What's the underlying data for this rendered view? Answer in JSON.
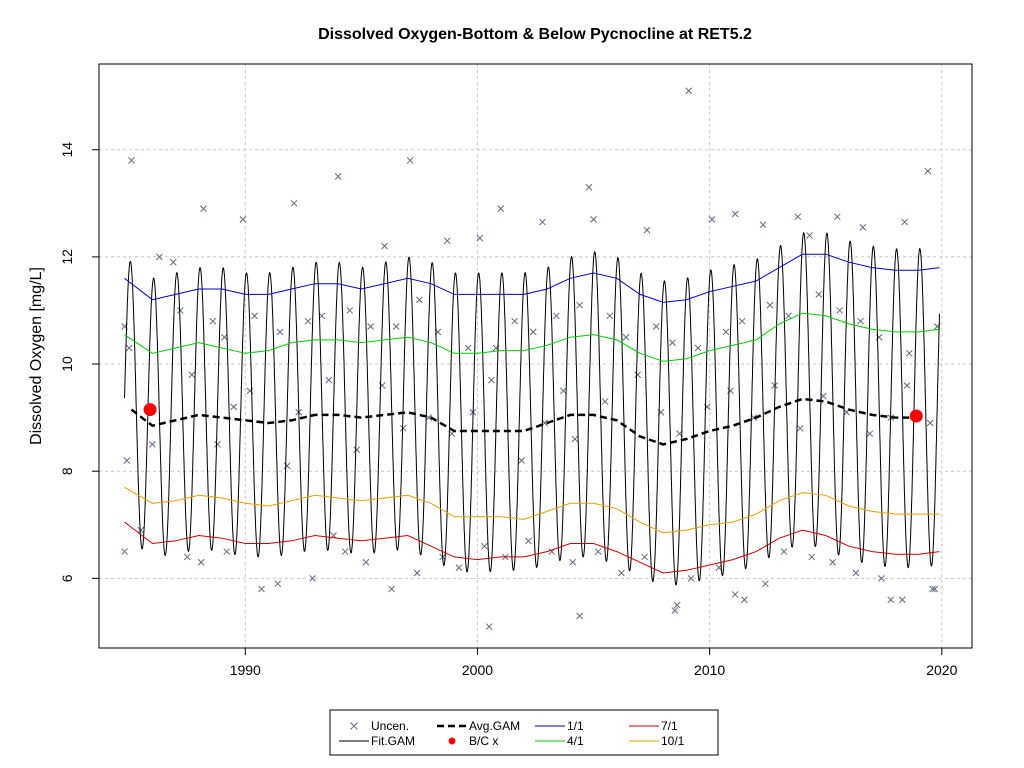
{
  "chart_data": {
    "type": "scatter",
    "title": "Dissolved Oxygen-Bottom & Below Pycnocline at RET5.2",
    "xlabel": "",
    "ylabel": "Dissolved Oxygen [mg/L]",
    "xlim": [
      1983.7,
      2021.3
    ],
    "ylim": [
      4.7,
      15.6
    ],
    "x_ticks": [
      1990,
      2000,
      2010,
      2020
    ],
    "y_ticks": [
      6,
      8,
      10,
      12,
      14
    ],
    "x_tick_labels": [
      "1990",
      "2000",
      "2010",
      "2020"
    ],
    "y_tick_labels": [
      "6",
      "8",
      "10",
      "12",
      "14"
    ],
    "grid": true,
    "legend_position": "bottom",
    "legend": [
      {
        "label": "Uncen.",
        "kind": "cross",
        "color": "#5a6a80"
      },
      {
        "label": "Fit.GAM",
        "kind": "line",
        "color": "#000000"
      },
      {
        "label": "Avg.GAM",
        "kind": "dashed",
        "color": "#000000"
      },
      {
        "label": "B/C x",
        "kind": "dot",
        "color": "#ff0000"
      },
      {
        "label": "1/1",
        "kind": "line",
        "color": "#0000cd"
      },
      {
        "label": "4/1",
        "kind": "line",
        "color": "#00cd00"
      },
      {
        "label": "7/1",
        "kind": "line",
        "color": "#cd0000"
      },
      {
        "label": "10/1",
        "kind": "line",
        "color": "#e8a000"
      }
    ],
    "series": [
      {
        "name": "1/1",
        "color": "#0000cd",
        "x": [
          1984.8,
          1986,
          1987,
          1988,
          1989,
          1990,
          1991,
          1992,
          1993,
          1994,
          1995,
          1996,
          1997,
          1998,
          1999,
          2000,
          2001,
          2002,
          2003,
          2004,
          2005,
          2006,
          2007,
          2008,
          2009,
          2010,
          2011,
          2012,
          2013,
          2014,
          2015,
          2016,
          2017,
          2018,
          2019,
          2019.9
        ],
        "y": [
          11.6,
          11.2,
          11.3,
          11.4,
          11.4,
          11.3,
          11.3,
          11.4,
          11.5,
          11.5,
          11.4,
          11.5,
          11.6,
          11.5,
          11.3,
          11.3,
          11.3,
          11.3,
          11.4,
          11.6,
          11.7,
          11.6,
          11.3,
          11.15,
          11.2,
          11.35,
          11.45,
          11.55,
          11.8,
          12.05,
          12.05,
          11.9,
          11.8,
          11.75,
          11.75,
          11.8
        ]
      },
      {
        "name": "4/1",
        "color": "#00cd00",
        "x": [
          1984.8,
          1986,
          1987,
          1988,
          1989,
          1990,
          1991,
          1992,
          1993,
          1994,
          1995,
          1996,
          1997,
          1998,
          1999,
          2000,
          2001,
          2002,
          2003,
          2004,
          2005,
          2006,
          2007,
          2008,
          2009,
          2010,
          2011,
          2012,
          2013,
          2014,
          2015,
          2016,
          2017,
          2018,
          2019,
          2019.9
        ],
        "y": [
          10.55,
          10.2,
          10.3,
          10.4,
          10.3,
          10.2,
          10.25,
          10.4,
          10.45,
          10.45,
          10.4,
          10.45,
          10.5,
          10.4,
          10.2,
          10.2,
          10.25,
          10.25,
          10.35,
          10.5,
          10.55,
          10.45,
          10.2,
          10.05,
          10.1,
          10.25,
          10.35,
          10.45,
          10.75,
          10.95,
          10.9,
          10.75,
          10.65,
          10.6,
          10.6,
          10.65
        ]
      },
      {
        "name": "10/1",
        "color": "#e8a000",
        "x": [
          1984.8,
          1986,
          1987,
          1988,
          1989,
          1990,
          1991,
          1992,
          1993,
          1994,
          1995,
          1996,
          1997,
          1998,
          1999,
          2000,
          2001,
          2002,
          2003,
          2004,
          2005,
          2006,
          2007,
          2008,
          2009,
          2010,
          2011,
          2012,
          2013,
          2014,
          2015,
          2016,
          2017,
          2018,
          2019,
          2019.9
        ],
        "y": [
          7.7,
          7.4,
          7.45,
          7.55,
          7.5,
          7.4,
          7.35,
          7.45,
          7.55,
          7.5,
          7.45,
          7.5,
          7.55,
          7.4,
          7.15,
          7.15,
          7.15,
          7.1,
          7.25,
          7.4,
          7.4,
          7.3,
          7.05,
          6.85,
          6.9,
          7.0,
          7.05,
          7.2,
          7.45,
          7.6,
          7.55,
          7.35,
          7.25,
          7.2,
          7.2,
          7.2
        ]
      },
      {
        "name": "7/1",
        "color": "#cd0000",
        "x": [
          1984.8,
          1986,
          1987,
          1988,
          1989,
          1990,
          1991,
          1992,
          1993,
          1994,
          1995,
          1996,
          1997,
          1998,
          1999,
          2000,
          2001,
          2002,
          2003,
          2004,
          2005,
          2006,
          2007,
          2008,
          2009,
          2010,
          2011,
          2012,
          2013,
          2014,
          2015,
          2016,
          2017,
          2018,
          2019,
          2019.9
        ],
        "y": [
          7.05,
          6.65,
          6.7,
          6.8,
          6.75,
          6.65,
          6.65,
          6.7,
          6.8,
          6.75,
          6.7,
          6.75,
          6.8,
          6.6,
          6.4,
          6.35,
          6.4,
          6.4,
          6.5,
          6.65,
          6.65,
          6.5,
          6.3,
          6.1,
          6.15,
          6.25,
          6.35,
          6.5,
          6.75,
          6.9,
          6.8,
          6.6,
          6.5,
          6.45,
          6.45,
          6.5
        ]
      },
      {
        "name": "Avg.GAM",
        "color": "#000000",
        "x": [
          1985.1,
          1986,
          1987,
          1988,
          1989,
          1990,
          1991,
          1992,
          1993,
          1994,
          1995,
          1996,
          1997,
          1998,
          1999,
          2000,
          2001,
          2002,
          2003,
          2004,
          2005,
          2006,
          2007,
          2008,
          2009,
          2010,
          2011,
          2012,
          2013,
          2014,
          2015,
          2016,
          2017,
          2018,
          2018.7
        ],
        "y": [
          9.15,
          8.85,
          8.95,
          9.05,
          9.0,
          8.95,
          8.9,
          8.95,
          9.05,
          9.05,
          9.0,
          9.05,
          9.1,
          9.0,
          8.75,
          8.75,
          8.75,
          8.75,
          8.9,
          9.05,
          9.05,
          8.95,
          8.65,
          8.5,
          8.6,
          8.75,
          8.85,
          9.0,
          9.2,
          9.35,
          9.3,
          9.15,
          9.05,
          9.0,
          9.0
        ]
      },
      {
        "name": "B/C x",
        "color": "#ff0000",
        "x": [
          1985.9,
          2018.9
        ],
        "y": [
          9.15,
          9.03
        ]
      },
      {
        "name": "Uncen.",
        "color": "#5a6a80",
        "x": [
          1985.1,
          1986.3,
          1986.9,
          1988.2,
          1989.9,
          1992.1,
          1994.0,
          1996.0,
          1997.1,
          1998.7,
          2000.1,
          2001.0,
          2002.8,
          2004.8,
          2005.0,
          2007.3,
          2009.1,
          2010.1,
          2011.1,
          2012.3,
          2013.8,
          2014.3,
          2015.5,
          2016.6,
          2018.4,
          2019.4,
          1984.8,
          1985.0,
          1987.2,
          1988.6,
          1989.1,
          1990.4,
          1991.5,
          1992.7,
          1993.3,
          1994.5,
          1995.4,
          1996.5,
          1997.5,
          1998.3,
          1999.6,
          2000.8,
          2001.6,
          2002.4,
          2003.4,
          2004.4,
          2005.7,
          2006.4,
          2007.7,
          2008.4,
          2009.5,
          2010.7,
          2011.4,
          2012.6,
          2013.4,
          2014.7,
          2015.6,
          2016.5,
          2017.3,
          2018.6,
          2019.8,
          1984.9,
          1986.0,
          1987.7,
          1988.8,
          1989.5,
          1990.2,
          1991.8,
          1992.3,
          1993.6,
          1994.8,
          1995.9,
          1996.8,
          1997.9,
          1998.9,
          1999.8,
          2000.6,
          2001.9,
          2002.9,
          2003.7,
          2004.2,
          2005.5,
          2006.9,
          2007.9,
          2008.7,
          2009.9,
          2010.9,
          2011.9,
          2012.8,
          2013.9,
          2014.9,
          2015.9,
          2016.9,
          2017.8,
          2018.5,
          2019.5,
          1984.8,
          1985.5,
          1987.5,
          1988.1,
          1989.2,
          1990.7,
          1991.4,
          1992.9,
          1993.8,
          1994.3,
          1995.2,
          1996.3,
          1997.4,
          1998.5,
          1999.2,
          2000.3,
          2001.2,
          2002.2,
          2003.2,
          2004.1,
          2005.2,
          2006.2,
          2007.2,
          2008.5,
          2009.2,
          2010.4,
          2011.5,
          2012.4,
          2013.2,
          2014.4,
          2015.3,
          2016.3,
          2017.4,
          2018.3,
          2019.7,
          2000.5,
          2004.4,
          2008.6,
          2011.1,
          2017.8,
          2019.6
        ],
        "y": [
          13.8,
          12.0,
          11.9,
          12.9,
          12.7,
          13.0,
          13.5,
          12.2,
          13.8,
          12.3,
          12.35,
          12.9,
          12.65,
          13.3,
          12.7,
          12.5,
          15.1,
          12.7,
          12.8,
          12.6,
          12.75,
          12.4,
          12.75,
          12.55,
          12.65,
          13.6,
          10.7,
          10.3,
          11.0,
          10.8,
          10.5,
          10.9,
          10.6,
          10.8,
          10.9,
          11.0,
          10.7,
          10.7,
          11.2,
          10.6,
          10.3,
          10.3,
          10.8,
          10.6,
          10.9,
          11.1,
          10.9,
          10.5,
          10.7,
          10.4,
          10.3,
          10.6,
          10.8,
          11.1,
          10.9,
          11.3,
          11.0,
          10.8,
          10.5,
          10.2,
          10.7,
          8.2,
          8.5,
          9.8,
          8.5,
          9.2,
          9.5,
          8.1,
          9.1,
          9.7,
          8.4,
          9.6,
          8.8,
          9.0,
          8.7,
          9.1,
          9.7,
          8.2,
          8.9,
          9.5,
          8.6,
          9.3,
          9.8,
          9.1,
          8.7,
          9.2,
          9.5,
          9.0,
          9.6,
          8.8,
          9.4,
          9.1,
          8.7,
          9.0,
          9.6,
          8.9,
          6.5,
          6.9,
          6.4,
          6.3,
          6.5,
          5.8,
          5.9,
          6.0,
          6.8,
          6.5,
          6.3,
          5.8,
          6.1,
          6.4,
          6.2,
          6.6,
          6.4,
          6.7,
          6.5,
          6.3,
          6.5,
          6.1,
          6.4,
          5.4,
          6.0,
          6.2,
          5.6,
          5.9,
          6.5,
          6.4,
          6.3,
          6.1,
          6.0,
          5.6,
          5.8,
          5.1,
          5.3,
          5.5,
          5.7,
          5.6,
          5.8
        ]
      }
    ]
  }
}
